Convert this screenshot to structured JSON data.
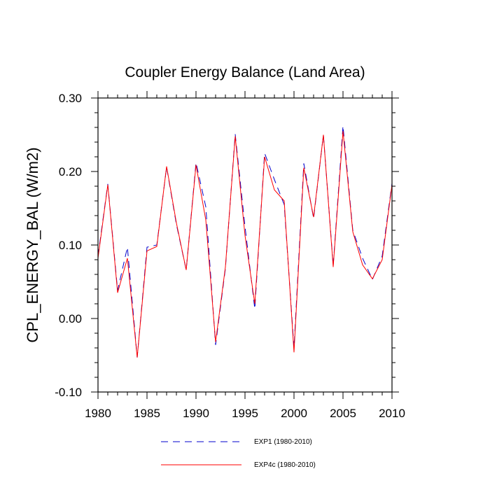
{
  "chart_data": {
    "type": "line",
    "title": "Coupler Energy Balance (Land Area)",
    "xlabel": "",
    "ylabel": "CPL_ENERGY_BAL  (W/m2)",
    "xlim": [
      1980,
      2010
    ],
    "ylim": [
      -0.1,
      0.3
    ],
    "xticks": [
      1980,
      1985,
      1990,
      1995,
      2000,
      2005,
      2010
    ],
    "yticks": [
      -0.1,
      0.0,
      0.1,
      0.2,
      0.3
    ],
    "ytick_labels": [
      "-0.10",
      "0.00",
      "0.10",
      "0.20",
      "0.30"
    ],
    "x": [
      1980,
      1981,
      1982,
      1983,
      1984,
      1985,
      1986,
      1987,
      1988,
      1989,
      1990,
      1991,
      1992,
      1993,
      1994,
      1995,
      1996,
      1997,
      1998,
      1999,
      2000,
      2001,
      2002,
      2003,
      2004,
      2005,
      2006,
      2007,
      2008,
      2009,
      2010
    ],
    "series": [
      {
        "name": "EXP1 (1980-2010)",
        "color": "#0000cc",
        "dash": "dashed",
        "values": [
          0.085,
          0.183,
          0.038,
          0.097,
          -0.053,
          0.097,
          0.1,
          0.206,
          0.128,
          0.066,
          0.212,
          0.152,
          -0.036,
          0.068,
          0.251,
          0.125,
          0.013,
          0.225,
          0.189,
          0.155,
          -0.04,
          0.211,
          0.136,
          0.25,
          0.072,
          0.262,
          0.12,
          0.082,
          0.053,
          0.085,
          0.184
        ]
      },
      {
        "name": "EXP4c (1980-2010)",
        "color": "#ff0000",
        "dash": "solid",
        "values": [
          0.082,
          0.182,
          0.035,
          0.082,
          -0.053,
          0.092,
          0.098,
          0.207,
          0.13,
          0.066,
          0.209,
          0.134,
          -0.032,
          0.07,
          0.248,
          0.113,
          0.02,
          0.22,
          0.175,
          0.16,
          -0.046,
          0.205,
          0.138,
          0.25,
          0.07,
          0.255,
          0.118,
          0.073,
          0.054,
          0.08,
          0.182
        ]
      }
    ],
    "legend_position": "bottom"
  }
}
